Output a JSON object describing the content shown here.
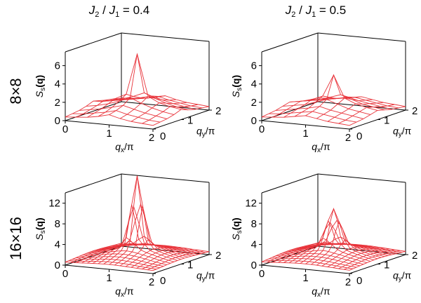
{
  "column_titles": [
    {
      "j2": "J",
      "j2sub": "2",
      "sep": " / ",
      "j1": "J",
      "j1sub": "1",
      "value": " = 0.4"
    },
    {
      "j2": "J",
      "j2sub": "2",
      "sep": " / ",
      "j1": "J",
      "j1sub": "1",
      "value": " = 0.5"
    }
  ],
  "row_labels": [
    "8×8",
    "16×16"
  ],
  "axis_text": {
    "qx": "q",
    "qx_sub": "x",
    "qy": "q",
    "qy_sub": "y",
    "per_pi": "/π",
    "z_main": "S",
    "z_sub": "s",
    "z_arg": "(q)"
  },
  "colors": {
    "surface": "#e8333a",
    "axes": "#000000"
  },
  "chart_data": [
    {
      "type": "surface3d",
      "panel": "8x8, J2/J1 = 0.4",
      "xlabel": "qx/π",
      "ylabel": "qy/π",
      "zlabel": "Ss(q)",
      "x_ticks": [
        "0",
        "1",
        "2"
      ],
      "y_ticks": [
        "0",
        "1",
        "2"
      ],
      "z_ticks": [
        "0",
        "2",
        "4",
        "6"
      ],
      "xlim": [
        0,
        2
      ],
      "ylim": [
        0,
        2
      ],
      "zlim": [
        0,
        7.5
      ],
      "grid_size": 8,
      "heights": [
        [
          0.4,
          0.5,
          0.6,
          0.8,
          1.1,
          0.8,
          0.6,
          0.5,
          0.4
        ],
        [
          0.5,
          0.6,
          0.8,
          1.0,
          1.3,
          1.0,
          0.8,
          0.6,
          0.5
        ],
        [
          0.6,
          0.8,
          1.0,
          1.3,
          1.6,
          1.3,
          1.0,
          0.8,
          0.6
        ],
        [
          0.8,
          1.0,
          1.3,
          1.7,
          2.2,
          1.7,
          1.3,
          1.0,
          0.8
        ],
        [
          1.1,
          1.3,
          1.6,
          2.2,
          6.7,
          2.2,
          1.6,
          1.3,
          1.1
        ],
        [
          0.8,
          1.0,
          1.3,
          1.7,
          2.2,
          1.7,
          1.3,
          1.0,
          0.8
        ],
        [
          0.6,
          0.8,
          1.0,
          1.3,
          1.6,
          1.3,
          1.0,
          0.8,
          0.6
        ],
        [
          0.5,
          0.6,
          0.8,
          1.0,
          1.3,
          1.0,
          0.8,
          0.6,
          0.5
        ],
        [
          0.4,
          0.5,
          0.6,
          0.8,
          1.1,
          0.8,
          0.6,
          0.5,
          0.4
        ]
      ]
    },
    {
      "type": "surface3d",
      "panel": "8x8, J2/J1 = 0.5",
      "xlabel": "qx/π",
      "ylabel": "qy/π",
      "zlabel": "Ss(q)",
      "x_ticks": [
        "0",
        "1",
        "2"
      ],
      "y_ticks": [
        "0",
        "1",
        "2"
      ],
      "z_ticks": [
        "0",
        "2",
        "4",
        "6"
      ],
      "xlim": [
        0,
        2
      ],
      "ylim": [
        0,
        2
      ],
      "zlim": [
        0,
        7.5
      ],
      "grid_size": 8,
      "heights": [
        [
          0.4,
          0.5,
          0.6,
          0.8,
          1.0,
          0.8,
          0.6,
          0.5,
          0.4
        ],
        [
          0.5,
          0.6,
          0.8,
          1.0,
          1.2,
          1.0,
          0.8,
          0.6,
          0.5
        ],
        [
          0.6,
          0.8,
          1.0,
          1.2,
          1.5,
          1.2,
          1.0,
          0.8,
          0.6
        ],
        [
          0.8,
          1.0,
          1.2,
          1.6,
          2.0,
          1.6,
          1.2,
          1.0,
          0.8
        ],
        [
          1.0,
          1.2,
          1.5,
          2.0,
          4.4,
          2.0,
          1.5,
          1.2,
          1.0
        ],
        [
          0.8,
          1.0,
          1.2,
          1.6,
          2.0,
          1.6,
          1.2,
          1.0,
          0.8
        ],
        [
          0.6,
          0.8,
          1.0,
          1.2,
          1.5,
          1.2,
          1.0,
          0.8,
          0.6
        ],
        [
          0.5,
          0.6,
          0.8,
          1.0,
          1.2,
          1.0,
          0.8,
          0.6,
          0.5
        ],
        [
          0.4,
          0.5,
          0.6,
          0.8,
          1.0,
          0.8,
          0.6,
          0.5,
          0.4
        ]
      ]
    },
    {
      "type": "surface3d",
      "panel": "16x16, J2/J1 = 0.4",
      "xlabel": "qx/π",
      "ylabel": "qy/π",
      "zlabel": "Ss(q)",
      "x_ticks": [
        "0",
        "1",
        "2"
      ],
      "y_ticks": [
        "0",
        "1",
        "2"
      ],
      "z_ticks": [
        "0",
        "4",
        "8",
        "12"
      ],
      "xlim": [
        0,
        2
      ],
      "ylim": [
        0,
        2
      ],
      "zlim": [
        0,
        14
      ],
      "grid_size": 16,
      "peak": 13.5,
      "peak_width": 0.12,
      "background": 0.5,
      "bump": 2.3,
      "bump_width": 0.55
    },
    {
      "type": "surface3d",
      "panel": "16x16, J2/J1 = 0.5",
      "xlabel": "qx/π",
      "ylabel": "qy/π",
      "zlabel": "Ss(q)",
      "x_ticks": [
        "0",
        "1",
        "2"
      ],
      "y_ticks": [
        "0",
        "1",
        "2"
      ],
      "z_ticks": [
        "0",
        "4",
        "8",
        "12"
      ],
      "xlim": [
        0,
        2
      ],
      "ylim": [
        0,
        2
      ],
      "zlim": [
        0,
        14
      ],
      "grid_size": 16,
      "peak": 7.2,
      "peak_width": 0.14,
      "background": 0.5,
      "bump": 2.2,
      "bump_width": 0.6
    }
  ]
}
